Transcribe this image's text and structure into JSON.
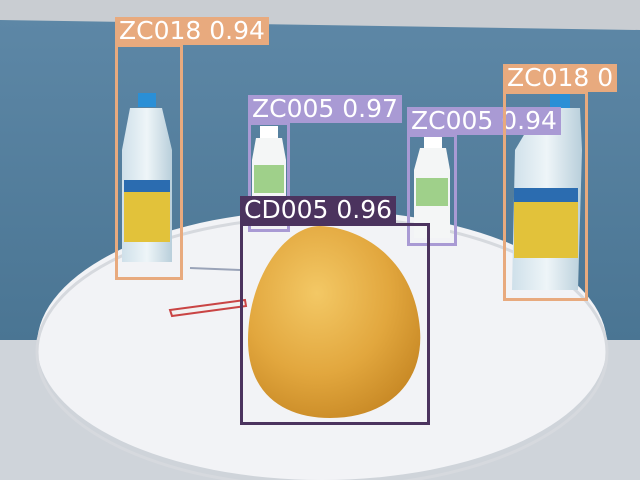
{
  "detections": [
    {
      "label": "ZC018 0.94",
      "color": "#e8aa7e"
    },
    {
      "label": "ZC005 0.97",
      "color": "#a99ad4"
    },
    {
      "label": "ZC005 0.94",
      "color": "#a99ad4"
    },
    {
      "label": "ZC018 0",
      "color": "#e8aa7e"
    },
    {
      "label": "CD005 0.96",
      "color": "#4b335e"
    }
  ]
}
